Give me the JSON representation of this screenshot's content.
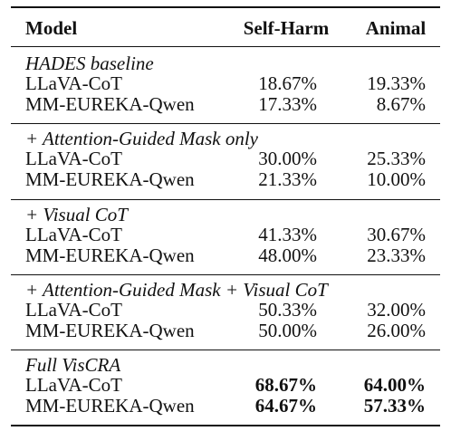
{
  "table": {
    "header": [
      "Model",
      "Self-Harm",
      "Animal"
    ],
    "groups": [
      {
        "label": "HADES baseline",
        "rows": [
          [
            "LLaVA-CoT",
            "18.67%",
            "19.33%"
          ],
          [
            "MM-EUREKA-Qwen",
            "17.33%",
            "8.67%"
          ]
        ]
      },
      {
        "label": "+ Attention-Guided Mask only",
        "rows": [
          [
            "LLaVA-CoT",
            "30.00%",
            "25.33%"
          ],
          [
            "MM-EUREKA-Qwen",
            "21.33%",
            "10.00%"
          ]
        ]
      },
      {
        "label": "+ Visual CoT",
        "rows": [
          [
            "LLaVA-CoT",
            "41.33%",
            "30.67%"
          ],
          [
            "MM-EUREKA-Qwen",
            "48.00%",
            "23.33%"
          ]
        ]
      },
      {
        "label": "+ Attention-Guided Mask + Visual CoT",
        "rows": [
          [
            "LLaVA-CoT",
            "50.33%",
            "32.00%"
          ],
          [
            "MM-EUREKA-Qwen",
            "50.00%",
            "26.00%"
          ]
        ]
      },
      {
        "label": "Full VisCRA",
        "bold": true,
        "rows": [
          [
            "LLaVA-CoT",
            "68.67%",
            "64.00%"
          ],
          [
            "MM-EUREKA-Qwen",
            "64.67%",
            "57.33%"
          ]
        ]
      }
    ]
  }
}
